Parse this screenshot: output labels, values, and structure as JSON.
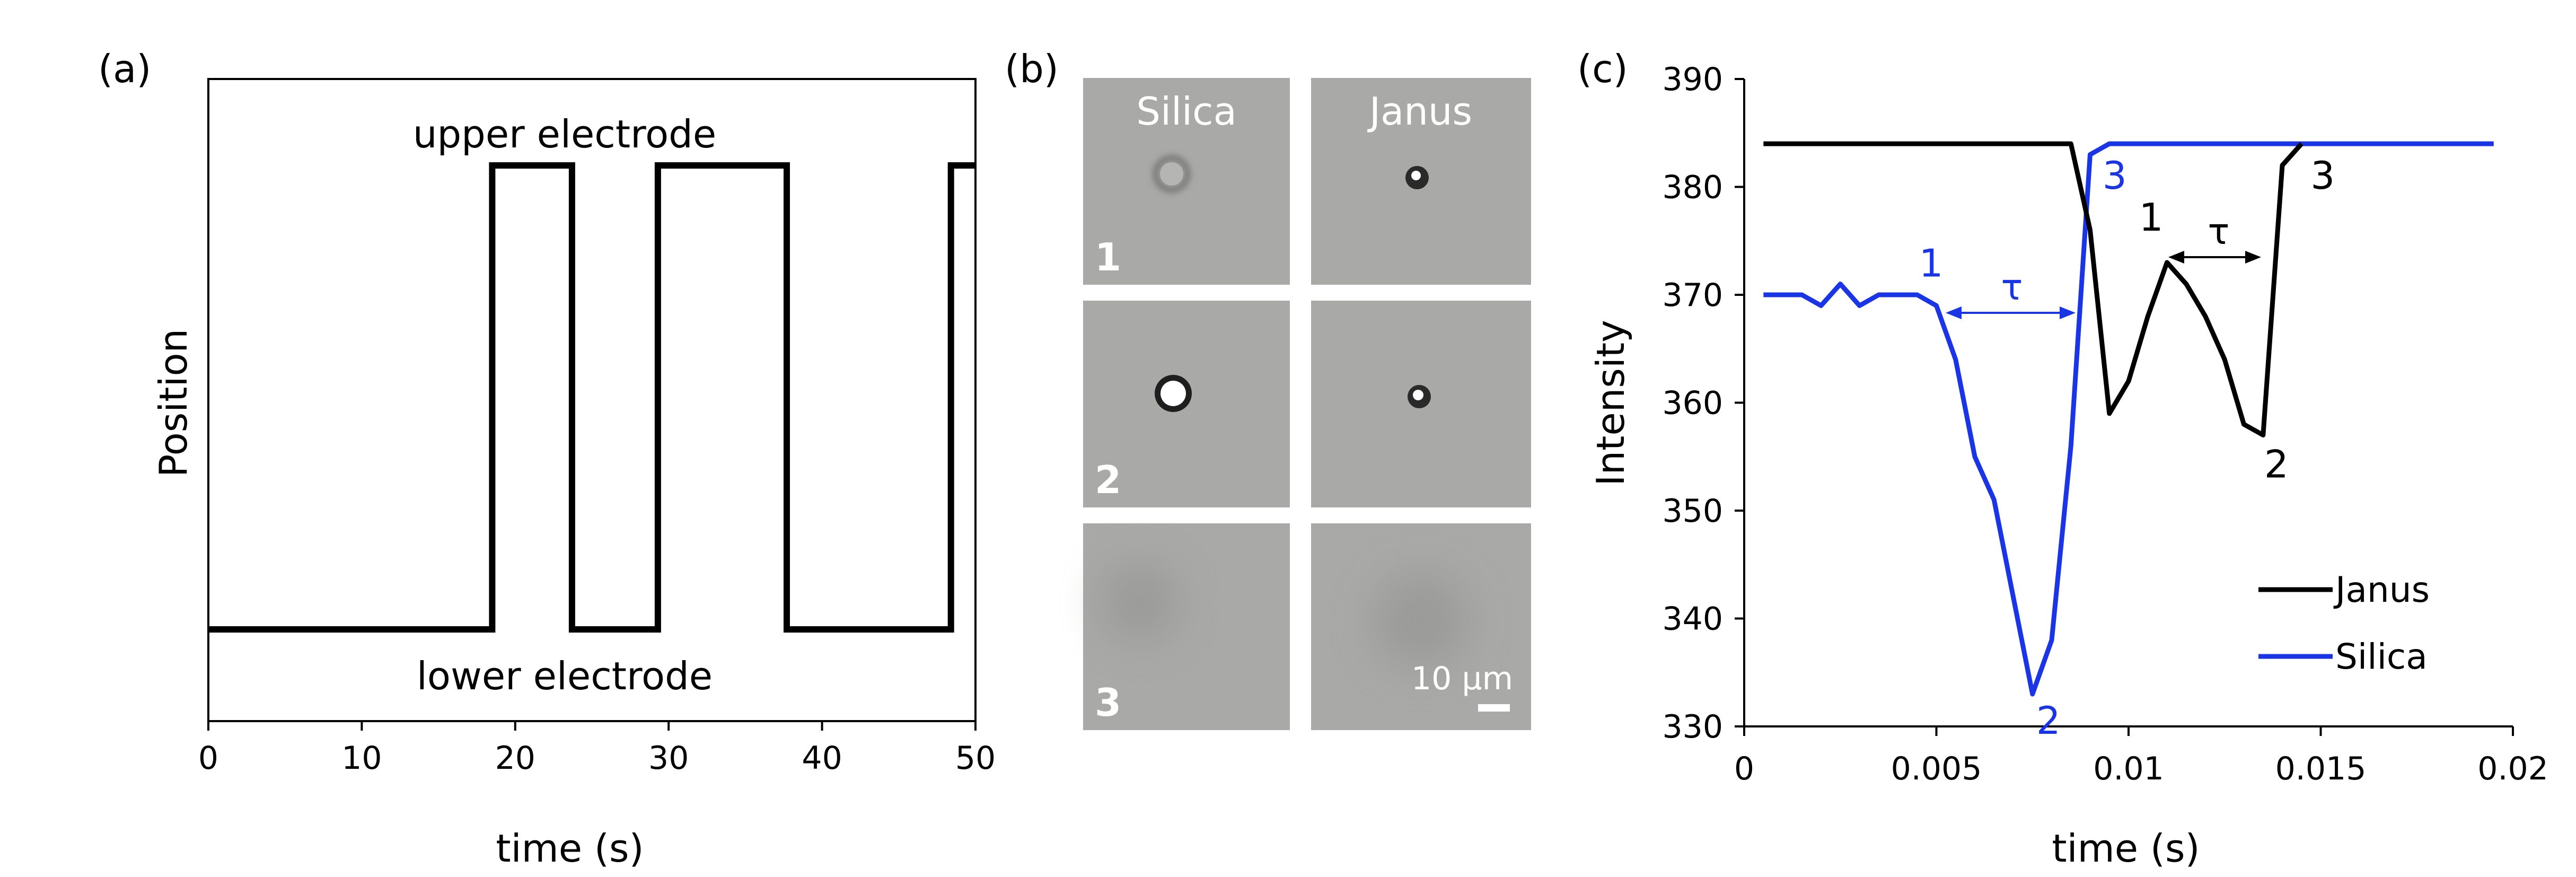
{
  "panels": {
    "a": {
      "label": "(a)"
    },
    "b": {
      "label": "(b)",
      "columns": [
        "Silica",
        "Janus"
      ],
      "rows": [
        "1",
        "2",
        "3"
      ],
      "scalebar_text": "10 µm"
    },
    "c": {
      "label": "(c)"
    }
  },
  "colors": {
    "janus": "#000000",
    "silica": "#1a35e6",
    "axis": "#000000",
    "image_bg": "#a9a9a7"
  },
  "chart_data": [
    {
      "type": "line",
      "title": "",
      "xlabel": "time (s)",
      "ylabel": "Position",
      "xlim": [
        0,
        50
      ],
      "xticks": [
        0,
        10,
        20,
        30,
        40,
        50
      ],
      "ylim": [
        0,
        1
      ],
      "grid": false,
      "annotations": {
        "upper": "upper electrode",
        "lower": "lower electrode"
      },
      "series": [
        {
          "x": [
            0,
            18.5,
            18.5,
            23.7,
            23.7,
            29.3,
            29.3,
            37.7,
            37.7,
            48.4,
            48.4,
            50
          ],
          "y": [
            0,
            0,
            1,
            1,
            0,
            0,
            1,
            1,
            0,
            0,
            1,
            1
          ]
        }
      ]
    },
    {
      "type": "line",
      "title": "",
      "xlabel": "time (s)",
      "ylabel": "Intensity",
      "xlim": [
        0,
        0.02
      ],
      "xticks": [
        "0",
        "0.005",
        "0.01",
        "0.015",
        "0.02"
      ],
      "ylim": [
        330,
        390
      ],
      "yticks": [
        330,
        340,
        350,
        360,
        370,
        380,
        390
      ],
      "grid": false,
      "legend": "bottom-right",
      "tau_label": "τ",
      "series": [
        {
          "name": "Janus",
          "x": [
            0.0005,
            0.0085,
            0.009,
            0.0095,
            0.01,
            0.0105,
            0.011,
            0.0115,
            0.012,
            0.0125,
            0.013,
            0.0135,
            0.014,
            0.0145
          ],
          "y": [
            384,
            384,
            376,
            359,
            362,
            368,
            373,
            371,
            368,
            364,
            358,
            357,
            382,
            384
          ],
          "markers": [
            {
              "text": "1",
              "x": 0.011,
              "y": 373
            },
            {
              "text": "2",
              "x": 0.0135,
              "y": 357
            },
            {
              "text": "3",
              "x": 0.0145,
              "y": 384
            }
          ]
        },
        {
          "name": "Silica",
          "x": [
            0.0005,
            0.0015,
            0.002,
            0.0025,
            0.003,
            0.0035,
            0.0045,
            0.005,
            0.0055,
            0.006,
            0.0065,
            0.007,
            0.0075,
            0.008,
            0.0085,
            0.009,
            0.0095,
            0.0195
          ],
          "y": [
            370,
            370,
            369,
            371,
            369,
            370,
            370,
            369,
            364,
            355,
            351,
            342,
            333,
            338,
            356,
            383,
            384,
            384
          ],
          "markers": [
            {
              "text": "1",
              "x": 0.005,
              "y": 369
            },
            {
              "text": "2",
              "x": 0.0075,
              "y": 333
            },
            {
              "text": "3",
              "x": 0.0095,
              "y": 384
            }
          ]
        }
      ]
    }
  ]
}
